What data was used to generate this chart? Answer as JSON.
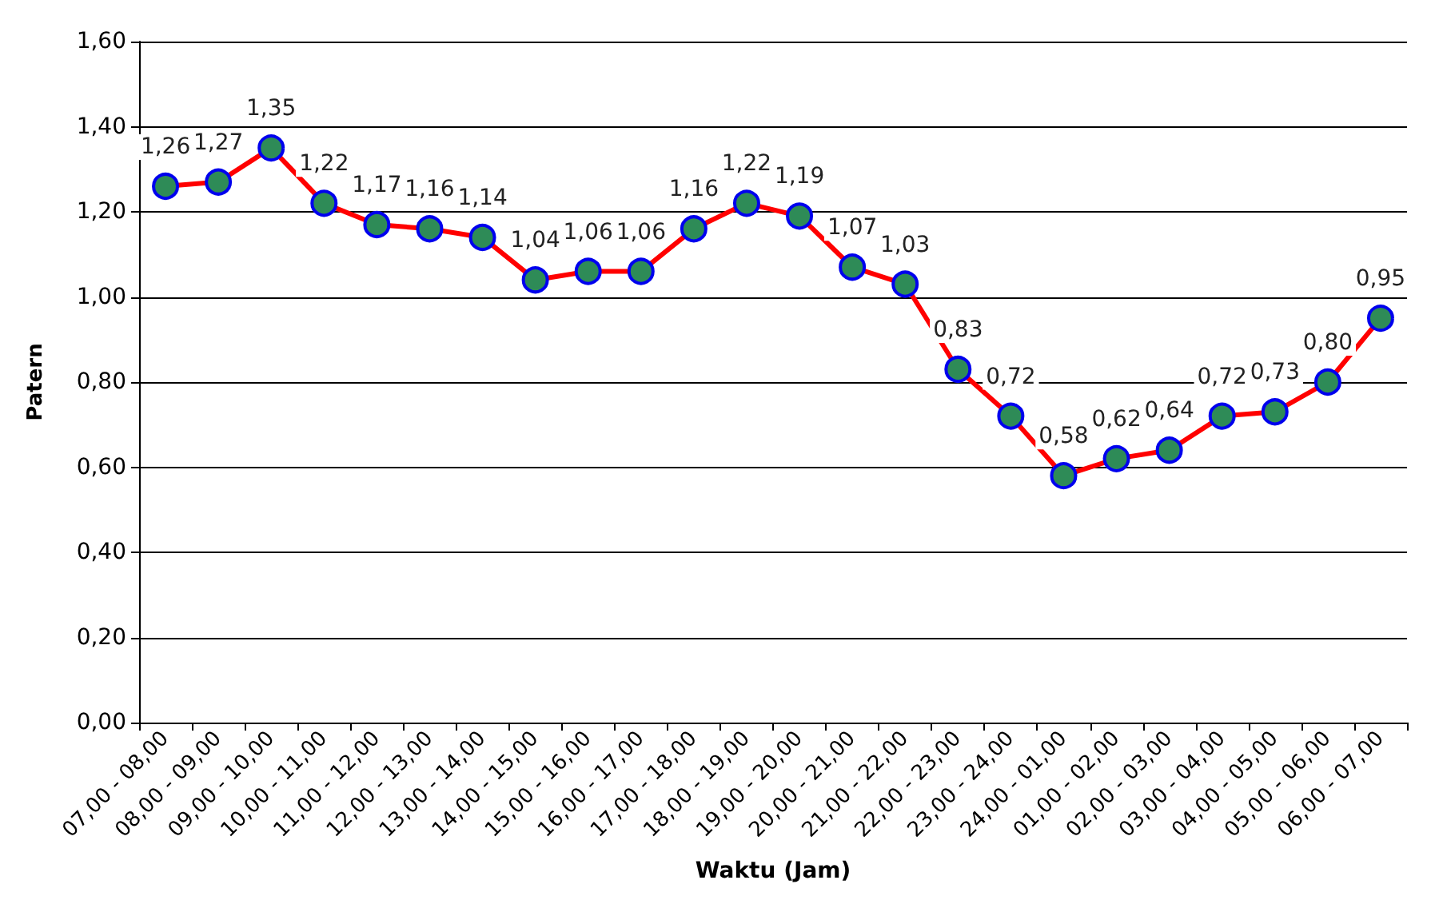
{
  "chart_data": {
    "type": "line",
    "xlabel": "Waktu (Jam)",
    "ylabel": "Patern",
    "categories": [
      "07,00 - 08,00",
      "08,00 - 09,00",
      "09,00 - 10,00",
      "10,00 - 11,00",
      "11,00 - 12,00",
      "12,00 - 13,00",
      "13,00 - 14,00",
      "14,00 - 15,00",
      "15,00 - 16,00",
      "16,00 - 17,00",
      "17,00 - 18,00",
      "18,00 - 19,00",
      "19,00 - 20,00",
      "20,00 - 21,00",
      "21,00 - 22,00",
      "22,00 - 23,00",
      "23,00 - 24,00",
      "24,00 - 01,00",
      "01,00 - 02,00",
      "02,00 - 03,00",
      "03,00 - 04,00",
      "04,00 - 05,00",
      "05,00 - 06,00",
      "06,00 - 07,00"
    ],
    "series": [
      {
        "color": "#ff0000",
        "values": [
          1.26,
          1.27,
          1.35,
          1.22,
          1.17,
          1.16,
          1.14,
          1.04,
          1.06,
          1.06,
          1.16,
          1.22,
          1.19,
          1.07,
          1.03,
          0.83,
          0.72,
          0.58,
          0.62,
          0.64,
          0.72,
          0.73,
          0.8,
          0.95
        ],
        "value_labels": [
          "1,26",
          "1,27",
          "1,35",
          "1,22",
          "1,17",
          "1,16",
          "1,14",
          "1,04",
          "1,06",
          "1,06",
          "1,16",
          "1,22",
          "1,19",
          "1,07",
          "1,03",
          "0,83",
          "0,72",
          "0,58",
          "0,62",
          "0,64",
          "0,72",
          "0,73",
          "0,80",
          "0,95"
        ]
      }
    ],
    "ylim": [
      0,
      1.6
    ],
    "yticks": [
      {
        "value": 0,
        "label": "0,00"
      },
      {
        "value": 0.2,
        "label": "0,20"
      },
      {
        "value": 0.4,
        "label": "0,40"
      },
      {
        "value": 0.6,
        "label": "0,60"
      },
      {
        "value": 0.8,
        "label": "0,80"
      },
      {
        "value": 1.0,
        "label": "1,00"
      },
      {
        "value": 1.2,
        "label": "1,20"
      },
      {
        "value": 1.4,
        "label": "1,40"
      },
      {
        "value": 1.6,
        "label": "1,60"
      }
    ],
    "grid": "y",
    "marker": "circle",
    "line_style": "solid"
  }
}
